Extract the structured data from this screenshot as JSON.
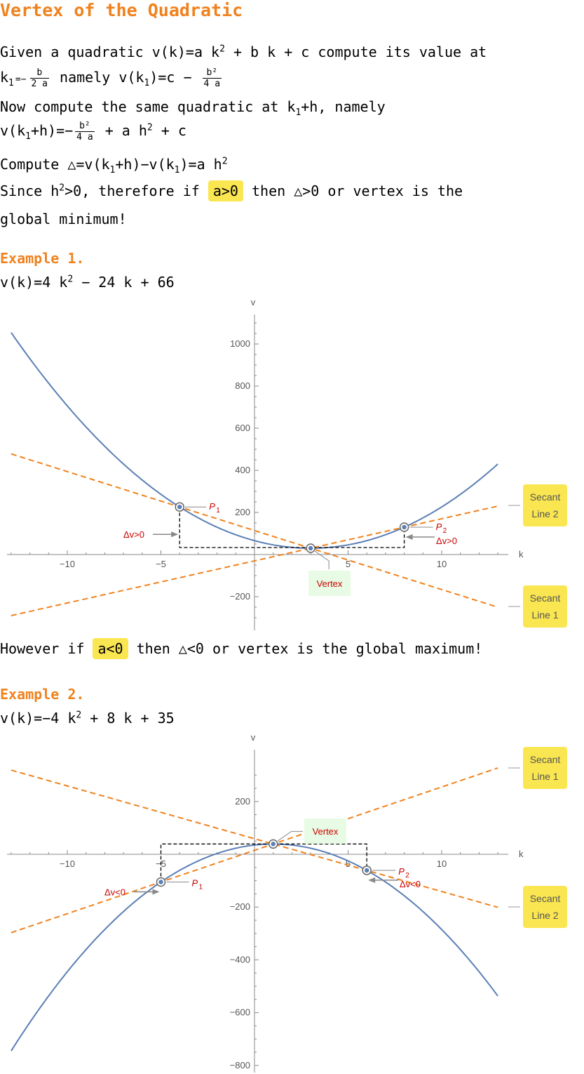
{
  "title": "Vertex of the Quadratic",
  "intro": {
    "l1": {
      "pre": "Given a quadratic ",
      "vk": "v(k)",
      "eq": "=a k",
      "sup": "2",
      "rest": " + b k + c",
      "post": " compute its value at"
    },
    "l2": {
      "k1": "k",
      "sub1": "1",
      "eq1": "=−",
      "fnum": "b",
      "fden": "2 a",
      "mid": " namely v(k",
      "sub2": "1",
      "eq2": ")=c − ",
      "f2num": "b²",
      "f2den": "4 a"
    },
    "l3": {
      "text": "Now compute the same quadratic at k",
      "sub": "1",
      "post": "+h, namely"
    },
    "l4": {
      "pre": "v(k",
      "sub": "1",
      "mid": "+h)=−",
      "fnum": "b²",
      "fden": "4 a",
      "post": " + a h",
      "sup": "2",
      "tail": " + c"
    },
    "l5": {
      "pre": "Compute △=v(k",
      "sub1": "1",
      "mid": "+h)−v(k",
      "sub2": "1",
      "post": ")=a h",
      "sup": "2"
    },
    "l6": {
      "pre": "Since h",
      "sup": "2",
      "mid": ">0, therefore if ",
      "hl": "a>0",
      "post": " then △>0 or vertex is the"
    },
    "l7": {
      "text": "global minimum!"
    }
  },
  "example1": {
    "heading": "Example 1.",
    "formula": {
      "pre": "v(k)=4 k",
      "sup": "2",
      "post": " − 24 k + 66"
    }
  },
  "however": {
    "pre": "However if ",
    "hl": "a<0",
    "post": " then △<0 or vertex is the global maximum!"
  },
  "example2": {
    "heading": "Example 2.",
    "formula": {
      "pre": "v(k)=−4 k",
      "sup": "2",
      "post": " + 8 k + 35"
    }
  },
  "chart_data": [
    {
      "type": "line",
      "title": "",
      "xlabel": "k",
      "ylabel": "v",
      "xlim": [
        -13,
        13
      ],
      "ylim": [
        -300,
        1120
      ],
      "xticks": [
        -10,
        -5,
        5,
        10
      ],
      "yticks": [
        -200,
        200,
        400,
        600,
        800,
        1000
      ],
      "function": {
        "a": 4,
        "b": -24,
        "c": 66
      },
      "points": [
        {
          "name": "P",
          "sub": "1",
          "k": -4,
          "v": 226
        },
        {
          "name": "P",
          "sub": "2",
          "k": 8,
          "v": 130
        },
        {
          "name": "Vertex",
          "k": 3,
          "v": 30
        }
      ],
      "delta_labels": [
        "Δv>0",
        "Δv>0"
      ],
      "secant_lines": [
        {
          "label_line1": "Secant",
          "label_line2": "Line 2",
          "slope": 20,
          "intercept": -30
        },
        {
          "label_line1": "Secant",
          "label_line2": "Line 1",
          "slope": -28,
          "intercept": 114
        }
      ],
      "colors": {
        "curve": "#5b7fb5",
        "secant": "#f0821e",
        "label": "#cc0000",
        "callout": "#fae651",
        "vertex_bg": "#e8fbe4"
      }
    },
    {
      "type": "line",
      "title": "",
      "xlabel": "k",
      "ylabel": "v",
      "xlim": [
        -13,
        13
      ],
      "ylim": [
        -800,
        330
      ],
      "xticks": [
        -10,
        -5,
        5,
        10
      ],
      "yticks": [
        -800,
        -600,
        -400,
        -200,
        200
      ],
      "function": {
        "a": -4,
        "b": 8,
        "c": 35
      },
      "points": [
        {
          "name": "P",
          "sub": "1",
          "k": -5,
          "v": -105
        },
        {
          "name": "P",
          "sub": "2",
          "k": 6,
          "v": -61
        },
        {
          "name": "Vertex",
          "k": 1,
          "v": 39
        }
      ],
      "delta_labels": [
        "Δv<0",
        "Δv<0"
      ],
      "secant_lines": [
        {
          "label_line1": "Secant",
          "label_line2": "Line 1",
          "slope": 24,
          "intercept": 15
        },
        {
          "label_line1": "Secant",
          "label_line2": "Line 2",
          "slope": -20,
          "intercept": 59
        }
      ],
      "colors": {
        "curve": "#5b7fb5",
        "secant": "#f0821e",
        "label": "#cc0000",
        "callout": "#fae651",
        "vertex_bg": "#e8fbe4"
      }
    }
  ]
}
